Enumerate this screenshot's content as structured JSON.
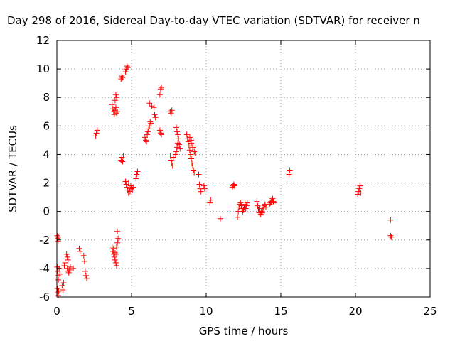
{
  "chart_data": {
    "type": "scatter",
    "title": "Day 298 of 2016, Sidereal Day-to-day VTEC variation (SDTVAR) for receiver n",
    "xlabel": "GPS time / hours",
    "ylabel": "SDTVAR / TECUs",
    "xlim": [
      0,
      25
    ],
    "ylim": [
      -6,
      12
    ],
    "xticks": [
      0,
      5,
      10,
      15,
      20,
      25
    ],
    "yticks": [
      -6,
      -4,
      -2,
      0,
      2,
      4,
      6,
      8,
      10,
      12
    ],
    "grid": true,
    "marker": "+",
    "color": "#ff0000",
    "series": [
      {
        "name": "SDTVAR",
        "points": [
          [
            0.02,
            -1.7
          ],
          [
            0.05,
            -1.9
          ],
          [
            0.08,
            -2.1
          ],
          [
            0.1,
            -1.8
          ],
          [
            0.02,
            -3.9
          ],
          [
            0.05,
            -4.2
          ],
          [
            0.08,
            -4.5
          ],
          [
            0.1,
            -4.8
          ],
          [
            0.03,
            -5.4
          ],
          [
            0.06,
            -5.7
          ],
          [
            0.09,
            -5.9
          ],
          [
            0.12,
            -5.6
          ],
          [
            0.15,
            -4.0
          ],
          [
            0.2,
            -4.4
          ],
          [
            0.35,
            -5.2
          ],
          [
            0.4,
            -5.5
          ],
          [
            0.45,
            -5.0
          ],
          [
            0.5,
            -3.8
          ],
          [
            0.55,
            -3.6
          ],
          [
            0.65,
            -3.0
          ],
          [
            0.7,
            -3.2
          ],
          [
            0.75,
            -3.4
          ],
          [
            0.7,
            -4.0
          ],
          [
            0.75,
            -4.2
          ],
          [
            0.8,
            -4.3
          ],
          [
            0.85,
            -4.1
          ],
          [
            0.9,
            -3.9
          ],
          [
            1.1,
            -4.0
          ],
          [
            1.5,
            -2.6
          ],
          [
            1.55,
            -2.8
          ],
          [
            1.8,
            -3.1
          ],
          [
            1.85,
            -3.5
          ],
          [
            1.9,
            -4.2
          ],
          [
            1.95,
            -4.5
          ],
          [
            2.0,
            -4.7
          ],
          [
            2.6,
            5.3
          ],
          [
            2.65,
            5.5
          ],
          [
            2.7,
            5.7
          ],
          [
            3.7,
            7.5
          ],
          [
            3.75,
            7.2
          ],
          [
            3.8,
            7.0
          ],
          [
            3.85,
            6.8
          ],
          [
            3.9,
            7.1
          ],
          [
            3.95,
            7.3
          ],
          [
            4.0,
            6.9
          ],
          [
            4.05,
            7.0
          ],
          [
            3.9,
            7.8
          ],
          [
            3.95,
            8.2
          ],
          [
            4.0,
            8.0
          ],
          [
            3.7,
            -2.5
          ],
          [
            3.75,
            -2.8
          ],
          [
            3.8,
            -3.0
          ],
          [
            3.85,
            -3.2
          ],
          [
            3.9,
            -3.4
          ],
          [
            3.95,
            -3.6
          ],
          [
            4.0,
            -3.8
          ],
          [
            3.8,
            -2.6
          ],
          [
            3.9,
            -2.9
          ],
          [
            4.0,
            -2.5
          ],
          [
            4.05,
            -2.2
          ],
          [
            4.1,
            -1.9
          ],
          [
            4.05,
            -1.4
          ],
          [
            4.0,
            -3.0
          ],
          [
            4.3,
            9.3
          ],
          [
            4.35,
            9.5
          ],
          [
            4.4,
            9.4
          ],
          [
            4.3,
            3.6
          ],
          [
            4.35,
            3.8
          ],
          [
            4.4,
            3.5
          ],
          [
            4.45,
            3.9
          ],
          [
            4.6,
            9.8
          ],
          [
            4.65,
            10.0
          ],
          [
            4.7,
            10.2
          ],
          [
            4.75,
            10.1
          ],
          [
            4.6,
            2.1
          ],
          [
            4.65,
            1.9
          ],
          [
            4.7,
            1.7
          ],
          [
            4.75,
            1.5
          ],
          [
            4.8,
            1.3
          ],
          [
            4.85,
            1.6
          ],
          [
            4.9,
            1.4
          ],
          [
            4.95,
            1.8
          ],
          [
            5.0,
            1.6
          ],
          [
            5.05,
            1.5
          ],
          [
            5.1,
            1.7
          ],
          [
            4.8,
            2.0
          ],
          [
            5.3,
            2.3
          ],
          [
            5.35,
            2.6
          ],
          [
            5.4,
            2.8
          ],
          [
            5.9,
            5.2
          ],
          [
            5.95,
            5.0
          ],
          [
            6.0,
            4.9
          ],
          [
            6.05,
            5.4
          ],
          [
            6.1,
            5.6
          ],
          [
            6.15,
            5.8
          ],
          [
            6.2,
            6.0
          ],
          [
            6.25,
            6.3
          ],
          [
            6.3,
            6.2
          ],
          [
            6.2,
            7.6
          ],
          [
            6.35,
            7.4
          ],
          [
            6.5,
            7.3
          ],
          [
            6.55,
            6.8
          ],
          [
            6.6,
            6.6
          ],
          [
            6.9,
            8.2
          ],
          [
            6.95,
            8.6
          ],
          [
            7.0,
            8.7
          ],
          [
            6.9,
            5.7
          ],
          [
            6.95,
            5.5
          ],
          [
            7.0,
            5.4
          ],
          [
            7.6,
            7.0
          ],
          [
            7.65,
            6.9
          ],
          [
            7.7,
            7.1
          ],
          [
            7.6,
            3.9
          ],
          [
            7.65,
            3.6
          ],
          [
            7.7,
            3.4
          ],
          [
            7.75,
            3.2
          ],
          [
            7.8,
            3.8
          ],
          [
            7.95,
            4.0
          ],
          [
            8.0,
            4.2
          ],
          [
            8.05,
            4.5
          ],
          [
            8.1,
            4.8
          ],
          [
            8.15,
            5.1
          ],
          [
            8.0,
            5.9
          ],
          [
            8.05,
            5.6
          ],
          [
            8.1,
            5.4
          ],
          [
            8.2,
            4.7
          ],
          [
            8.25,
            4.4
          ],
          [
            8.7,
            5.4
          ],
          [
            8.75,
            5.1
          ],
          [
            8.8,
            4.9
          ],
          [
            8.85,
            4.6
          ],
          [
            8.9,
            4.3
          ],
          [
            8.95,
            4.0
          ],
          [
            9.0,
            3.7
          ],
          [
            9.05,
            3.4
          ],
          [
            9.1,
            3.2
          ],
          [
            9.15,
            2.9
          ],
          [
            9.2,
            2.7
          ],
          [
            9.25,
            4.1
          ],
          [
            8.9,
            5.2
          ],
          [
            9.0,
            4.8
          ],
          [
            9.1,
            4.5
          ],
          [
            9.2,
            4.2
          ],
          [
            9.0,
            5.0
          ],
          [
            9.1,
            4.6
          ],
          [
            9.5,
            2.6
          ],
          [
            9.55,
            1.9
          ],
          [
            9.6,
            1.6
          ],
          [
            9.65,
            1.4
          ],
          [
            9.85,
            1.8
          ],
          [
            9.9,
            1.6
          ],
          [
            10.25,
            0.6
          ],
          [
            10.3,
            0.8
          ],
          [
            10.95,
            -0.5
          ],
          [
            11.75,
            1.7
          ],
          [
            11.8,
            1.8
          ],
          [
            11.85,
            1.9
          ],
          [
            11.9,
            1.8
          ],
          [
            12.1,
            -0.4
          ],
          [
            12.15,
            0.0
          ],
          [
            12.2,
            0.3
          ],
          [
            12.25,
            0.5
          ],
          [
            12.3,
            0.6
          ],
          [
            12.35,
            0.4
          ],
          [
            12.4,
            0.2
          ],
          [
            12.45,
            0.0
          ],
          [
            12.5,
            0.1
          ],
          [
            12.55,
            0.3
          ],
          [
            12.6,
            0.5
          ],
          [
            12.65,
            0.2
          ],
          [
            12.7,
            0.4
          ],
          [
            12.75,
            0.6
          ],
          [
            13.4,
            0.7
          ],
          [
            13.45,
            0.4
          ],
          [
            13.5,
            0.1
          ],
          [
            13.55,
            -0.1
          ],
          [
            13.6,
            0.2
          ],
          [
            13.65,
            -0.2
          ],
          [
            13.7,
            0.0
          ],
          [
            13.75,
            -0.1
          ],
          [
            13.8,
            0.1
          ],
          [
            13.85,
            0.3
          ],
          [
            13.9,
            0.4
          ],
          [
            13.95,
            0.5
          ],
          [
            14.0,
            0.3
          ],
          [
            14.25,
            0.5
          ],
          [
            14.3,
            0.6
          ],
          [
            14.35,
            0.7
          ],
          [
            14.4,
            0.8
          ],
          [
            14.45,
            0.9
          ],
          [
            14.5,
            0.7
          ],
          [
            14.55,
            0.6
          ],
          [
            15.55,
            2.6
          ],
          [
            15.6,
            2.9
          ],
          [
            20.15,
            1.2
          ],
          [
            20.2,
            1.4
          ],
          [
            20.25,
            1.6
          ],
          [
            20.3,
            1.8
          ],
          [
            20.35,
            1.3
          ],
          [
            22.35,
            -0.6
          ],
          [
            22.35,
            -1.7
          ],
          [
            22.4,
            -1.8
          ]
        ]
      }
    ]
  }
}
